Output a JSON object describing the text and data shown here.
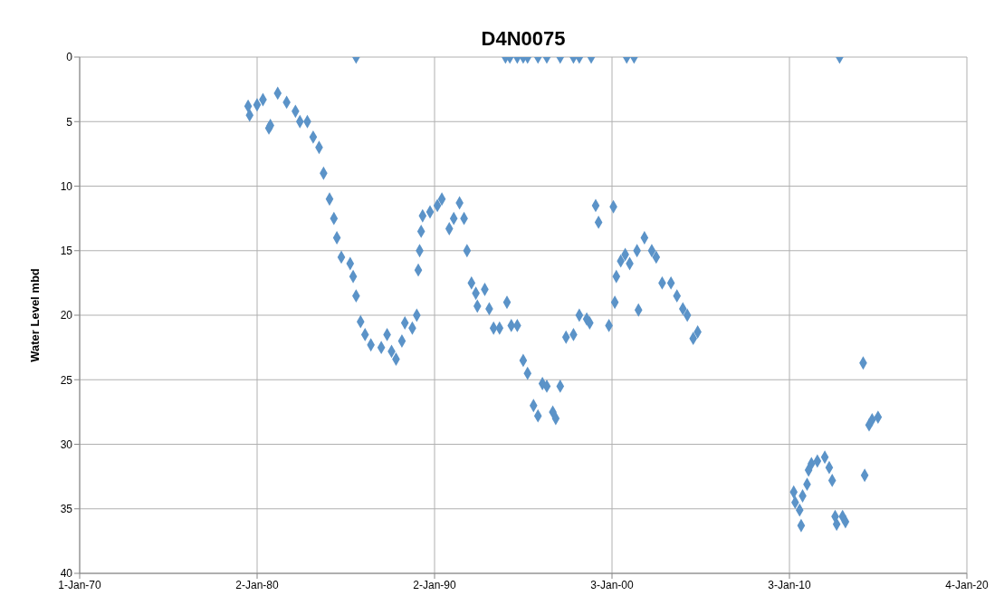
{
  "chart_data": {
    "type": "scatter",
    "title": "D4N0075",
    "ylabel": "Water Level mbd",
    "x": [
      "1979-07",
      "1979-08",
      "1980-01",
      "1980-05",
      "1980-09",
      "1980-10",
      "1981-03",
      "1981-09",
      "1982-03",
      "1982-06",
      "1982-11",
      "1983-03",
      "1983-07",
      "1983-10",
      "1984-02",
      "1984-05",
      "1984-07",
      "1984-10",
      "1985-04",
      "1985-06",
      "1985-08",
      "1985-08",
      "1985-11",
      "1986-02",
      "1986-06",
      "1987-01",
      "1987-05",
      "1987-08",
      "1987-11",
      "1988-03",
      "1988-05",
      "1988-10",
      "1989-01",
      "1989-02",
      "1989-03",
      "1989-04",
      "1989-05",
      "1989-10",
      "1990-03",
      "1990-06",
      "1990-11",
      "1991-02",
      "1991-06",
      "1991-09",
      "1991-11",
      "1992-02",
      "1992-05",
      "1992-06",
      "1992-11",
      "1993-02",
      "1993-05",
      "1993-09",
      "1994-01",
      "1994-02",
      "1994-04",
      "1994-05",
      "1994-09",
      "1994-09",
      "1995-01",
      "1995-01",
      "1995-04",
      "1995-04",
      "1995-08",
      "1995-11",
      "1995-11",
      "1996-02",
      "1996-05",
      "1996-05",
      "1996-09",
      "1996-11",
      "1997-02",
      "1997-02",
      "1997-06",
      "1997-11",
      "1997-11",
      "1998-03",
      "1998-03",
      "1998-08",
      "1998-10",
      "1998-11",
      "1999-02",
      "1999-04",
      "1999-11",
      "2000-02",
      "2000-03",
      "2000-04",
      "2000-07",
      "2000-10",
      "2000-11",
      "2001-01",
      "2001-04",
      "2001-06",
      "2001-07",
      "2001-11",
      "2002-04",
      "2002-07",
      "2002-11",
      "2003-05",
      "2003-09",
      "2004-01",
      "2004-04",
      "2004-08",
      "2004-11",
      "2010-04",
      "2010-05",
      "2010-08",
      "2010-09",
      "2010-10",
      "2011-01",
      "2011-02",
      "2011-04",
      "2011-08",
      "2012-01",
      "2012-04",
      "2012-06",
      "2012-08",
      "2012-09",
      "2012-11",
      "2013-01",
      "2013-03",
      "2014-03",
      "2014-04",
      "2014-07",
      "2014-09",
      "2015-01"
    ],
    "values": [
      3.8,
      4.5,
      3.7,
      3.3,
      5.5,
      5.3,
      2.8,
      3.5,
      4.2,
      5,
      5,
      6.2,
      7,
      9,
      11,
      12.5,
      14,
      15.5,
      16,
      17,
      18.5,
      0,
      20.5,
      21.5,
      22.3,
      22.5,
      21.5,
      22.8,
      23.4,
      22,
      20.6,
      21,
      20,
      16.5,
      15,
      13.5,
      12.3,
      12,
      11.5,
      11,
      13.3,
      12.5,
      11.3,
      12.5,
      15,
      17.5,
      18.3,
      19.3,
      18,
      19.5,
      21,
      21,
      0,
      19,
      0,
      20.8,
      20.8,
      0,
      23.5,
      0,
      24.5,
      0,
      27,
      27.8,
      0,
      25.3,
      25.5,
      0,
      27.5,
      28,
      25.5,
      0,
      21.7,
      21.5,
      0,
      20,
      0,
      20.3,
      20.6,
      0,
      11.5,
      12.8,
      20.8,
      11.6,
      19,
      17,
      15.8,
      15.3,
      0,
      16,
      0,
      15,
      19.6,
      14,
      15,
      15.5,
      17.5,
      17.5,
      18.5,
      19.5,
      20,
      21.8,
      21.3,
      33.7,
      34.5,
      35.1,
      36.3,
      34,
      33.1,
      32,
      31.5,
      31.3,
      31,
      31.8,
      32.8,
      35.6,
      36.2,
      0,
      35.6,
      36,
      23.7,
      32.4,
      28.5,
      28.1,
      27.9
    ],
    "color": "#5b93c8",
    "marker": "diamond",
    "xlim": [
      "1970-01-01",
      "2020-01-04"
    ],
    "xticks": [
      {
        "value": "1970-01-01",
        "label": "1-Jan-70"
      },
      {
        "value": "1980-01-02",
        "label": "2-Jan-80"
      },
      {
        "value": "1990-01-02",
        "label": "2-Jan-90"
      },
      {
        "value": "2000-01-03",
        "label": "3-Jan-00"
      },
      {
        "value": "2010-01-03",
        "label": "3-Jan-10"
      },
      {
        "value": "2020-01-04",
        "label": "4-Jan-20"
      }
    ],
    "ylim": [
      40,
      0
    ],
    "yticks": [
      0,
      5,
      10,
      15,
      20,
      25,
      30,
      35,
      40
    ],
    "grid": true
  }
}
